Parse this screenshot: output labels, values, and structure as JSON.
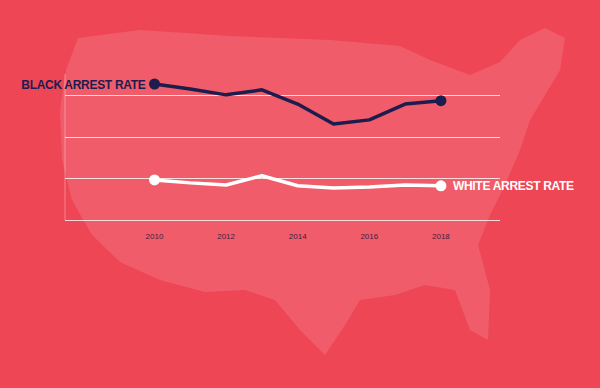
{
  "chart_data": {
    "type": "line",
    "x": [
      2010,
      2011,
      2012,
      2013,
      2014,
      2015,
      2016,
      2017,
      2018
    ],
    "series": [
      {
        "name": "BLACK ARREST RATE",
        "color": "#1c1d4e",
        "marker": "ends",
        "values": [
          3.26,
          3.14,
          3.0,
          3.12,
          2.78,
          2.3,
          2.4,
          2.78,
          2.86
        ]
      },
      {
        "name": "WHITE ARREST RATE",
        "color": "#ffffff",
        "marker": "ends",
        "values": [
          0.96,
          0.89,
          0.84,
          1.06,
          0.82,
          0.77,
          0.79,
          0.84,
          0.82
        ]
      }
    ],
    "xlim": [
      2007.5,
      2019.65
    ],
    "xticks": [
      2010,
      2012,
      2014,
      2016,
      2018
    ],
    "ylim": [
      0,
      3.5
    ],
    "yticks": [
      0,
      1,
      2,
      3
    ],
    "grid": true,
    "tick_labels": "x"
  }
}
